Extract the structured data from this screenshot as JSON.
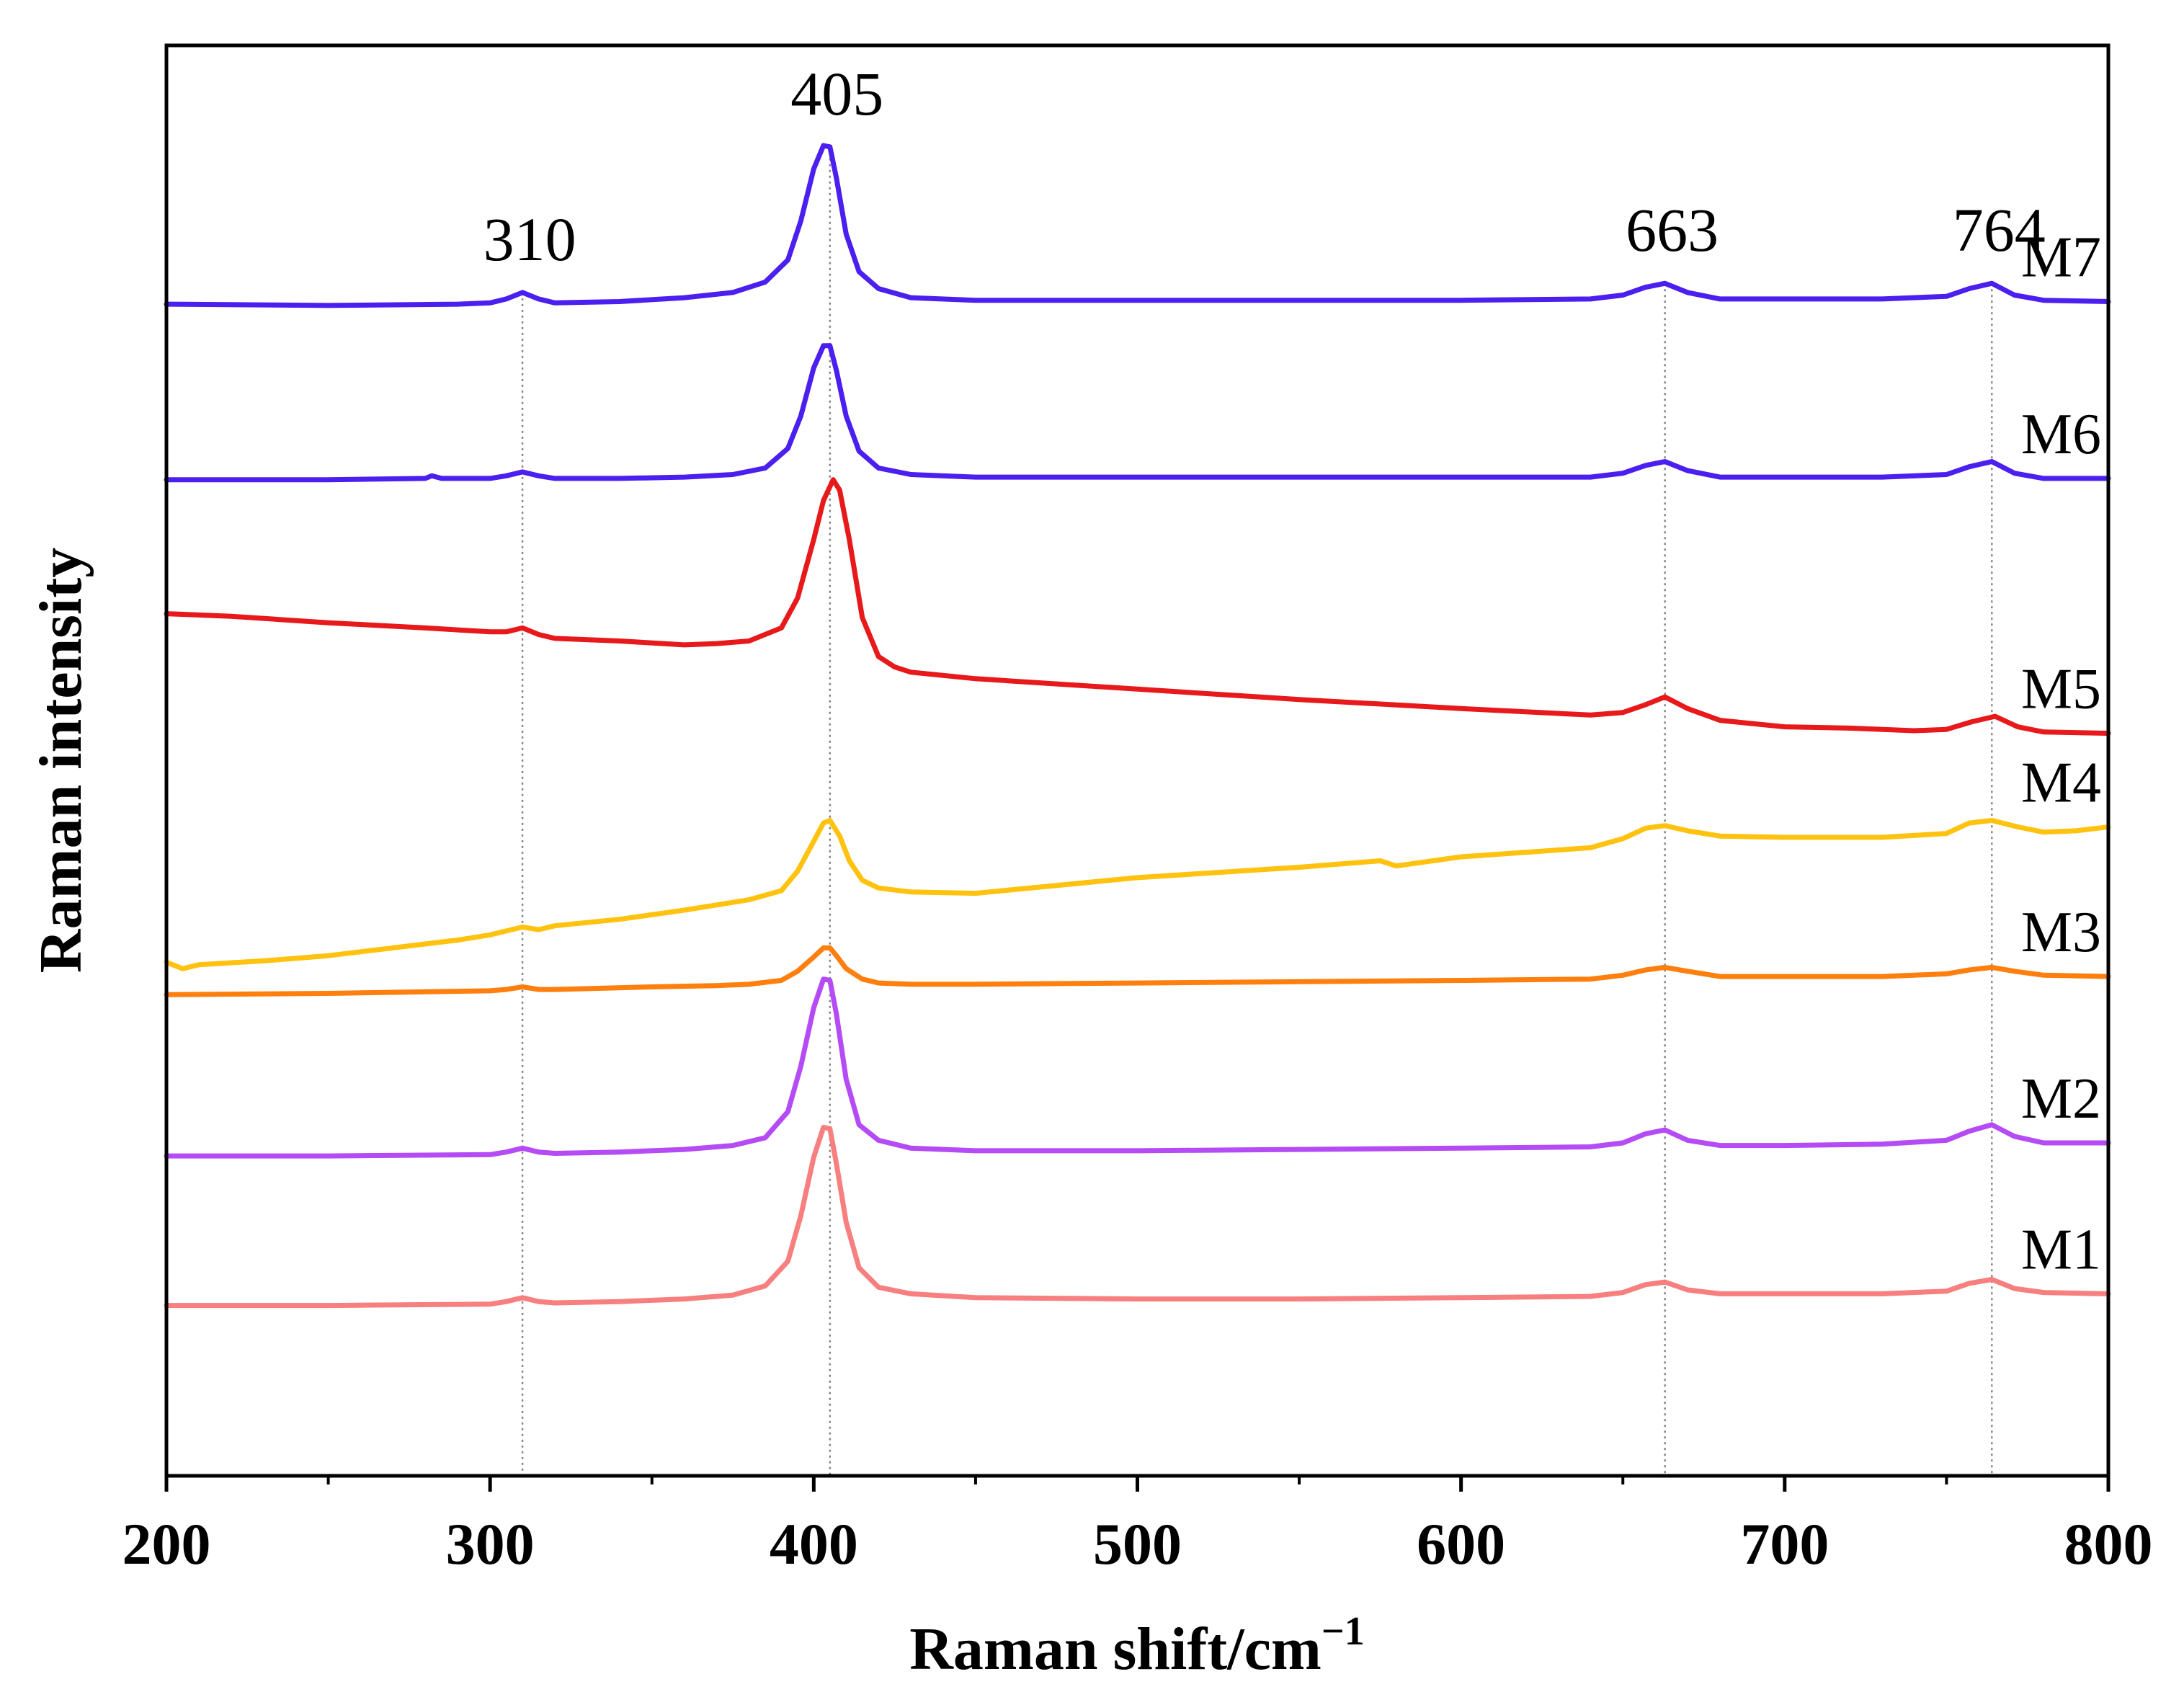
{
  "chart_data": {
    "type": "line",
    "title": "",
    "xlabel": "Raman shift/cm",
    "xlabel_sup": "−1",
    "ylabel": "Raman intensity",
    "xlim": [
      200,
      800
    ],
    "ylim": [
      0,
      110
    ],
    "xticks": [
      200,
      300,
      400,
      500,
      600,
      700,
      800
    ],
    "xtick_labels": [
      "200",
      "300",
      "400",
      "500",
      "600",
      "700",
      "800"
    ],
    "yticks_shown": false,
    "peak_markers": [
      {
        "x": 310,
        "label": "310"
      },
      {
        "x": 405,
        "label": "405"
      },
      {
        "x": 663,
        "label": "663"
      },
      {
        "x": 764,
        "label": "764"
      }
    ],
    "series": [
      {
        "name": "M7",
        "color": "#4B1FF0",
        "x": [
          200,
          250,
          290,
          300,
          305,
          310,
          315,
          320,
          340,
          360,
          375,
          385,
          392,
          396,
          400,
          403,
          405,
          407,
          410,
          414,
          420,
          430,
          450,
          500,
          550,
          600,
          640,
          650,
          657,
          663,
          670,
          680,
          700,
          730,
          750,
          757,
          764,
          771,
          780,
          800
        ],
        "y": [
          90.1,
          90.0,
          90.1,
          90.2,
          90.5,
          91.0,
          90.5,
          90.2,
          90.3,
          90.6,
          91.0,
          91.8,
          93.5,
          96.5,
          100.5,
          102.3,
          102.2,
          99.8,
          95.5,
          92.6,
          91.3,
          90.6,
          90.4,
          90.4,
          90.4,
          90.4,
          90.5,
          90.8,
          91.4,
          91.7,
          91.0,
          90.5,
          90.5,
          90.5,
          90.7,
          91.3,
          91.7,
          90.8,
          90.4,
          90.3
        ]
      },
      {
        "name": "M6",
        "color": "#4B1FF0",
        "x": [
          200,
          250,
          280,
          282,
          285,
          300,
          305,
          310,
          315,
          320,
          340,
          360,
          375,
          385,
          392,
          396,
          400,
          403,
          405,
          407,
          410,
          414,
          420,
          430,
          450,
          500,
          550,
          600,
          640,
          650,
          657,
          663,
          670,
          680,
          700,
          730,
          750,
          757,
          764,
          771,
          780,
          800
        ],
        "y": [
          76.6,
          76.6,
          76.7,
          76.9,
          76.7,
          76.7,
          76.9,
          77.2,
          76.9,
          76.7,
          76.7,
          76.8,
          77.0,
          77.5,
          79.0,
          81.5,
          85.2,
          86.9,
          86.9,
          85.0,
          81.5,
          78.8,
          77.5,
          77.0,
          76.8,
          76.8,
          76.8,
          76.8,
          76.8,
          77.1,
          77.7,
          78.0,
          77.3,
          76.8,
          76.8,
          76.8,
          77.0,
          77.6,
          78.0,
          77.1,
          76.7,
          76.7
        ]
      },
      {
        "name": "M5",
        "color": "#E8191B",
        "x": [
          200,
          220,
          250,
          280,
          300,
          305,
          310,
          315,
          320,
          340,
          360,
          370,
          380,
          390,
          395,
          400,
          403,
          406,
          408,
          411,
          415,
          420,
          425,
          430,
          450,
          500,
          550,
          600,
          640,
          650,
          657,
          663,
          670,
          680,
          700,
          720,
          740,
          750,
          758,
          765,
          772,
          780,
          800
        ],
        "y": [
          66.3,
          66.1,
          65.6,
          65.2,
          64.9,
          64.9,
          65.2,
          64.7,
          64.4,
          64.2,
          63.9,
          64.0,
          64.2,
          65.2,
          67.5,
          72.0,
          75.0,
          76.6,
          75.8,
          72.0,
          66.0,
          63.0,
          62.2,
          61.8,
          61.3,
          60.5,
          59.7,
          59.0,
          58.5,
          58.7,
          59.3,
          59.9,
          59.0,
          58.1,
          57.6,
          57.5,
          57.3,
          57.4,
          58.0,
          58.4,
          57.6,
          57.2,
          57.1
        ]
      },
      {
        "name": "M4",
        "color": "#FFC20E",
        "x": [
          200,
          205,
          210,
          230,
          250,
          270,
          290,
          300,
          305,
          310,
          315,
          320,
          340,
          360,
          370,
          380,
          390,
          395,
          400,
          403,
          405,
          408,
          411,
          415,
          420,
          430,
          450,
          500,
          550,
          575,
          580,
          600,
          640,
          650,
          657,
          663,
          670,
          680,
          700,
          730,
          750,
          757,
          764,
          772,
          780,
          790,
          800
        ],
        "y": [
          39.5,
          39.0,
          39.3,
          39.6,
          40.0,
          40.6,
          41.2,
          41.6,
          41.9,
          42.2,
          42.0,
          42.3,
          42.8,
          43.5,
          43.9,
          44.3,
          45.0,
          46.5,
          48.8,
          50.2,
          50.4,
          49.2,
          47.3,
          45.8,
          45.2,
          44.9,
          44.8,
          46.0,
          46.8,
          47.3,
          46.9,
          47.6,
          48.3,
          49.0,
          49.8,
          50.0,
          49.6,
          49.2,
          49.1,
          49.1,
          49.4,
          50.2,
          50.4,
          49.9,
          49.5,
          49.6,
          49.9
        ]
      },
      {
        "name": "M3",
        "color": "#FF7F0E",
        "x": [
          200,
          250,
          300,
          305,
          310,
          315,
          320,
          350,
          370,
          380,
          390,
          395,
          400,
          403,
          405,
          407,
          410,
          415,
          420,
          430,
          450,
          500,
          550,
          600,
          640,
          650,
          657,
          663,
          670,
          680,
          700,
          730,
          750,
          757,
          764,
          771,
          780,
          800
        ],
        "y": [
          37.0,
          37.1,
          37.3,
          37.4,
          37.6,
          37.4,
          37.4,
          37.6,
          37.7,
          37.8,
          38.1,
          38.8,
          39.9,
          40.6,
          40.6,
          40.0,
          39.0,
          38.2,
          37.9,
          37.8,
          37.8,
          37.9,
          38.0,
          38.1,
          38.2,
          38.5,
          38.9,
          39.1,
          38.8,
          38.4,
          38.4,
          38.4,
          38.6,
          38.9,
          39.1,
          38.8,
          38.5,
          38.4
        ]
      },
      {
        "name": "M2",
        "color": "#B44BF5",
        "x": [
          200,
          250,
          300,
          305,
          310,
          315,
          320,
          340,
          360,
          375,
          385,
          392,
          396,
          400,
          403,
          405,
          407,
          410,
          414,
          420,
          430,
          450,
          500,
          550,
          600,
          640,
          650,
          657,
          663,
          670,
          680,
          700,
          730,
          750,
          757,
          764,
          771,
          780,
          800
        ],
        "y": [
          24.6,
          24.6,
          24.7,
          24.9,
          25.2,
          24.9,
          24.8,
          24.9,
          25.1,
          25.4,
          26.0,
          28.0,
          31.5,
          36.0,
          38.2,
          38.1,
          35.5,
          30.5,
          27.0,
          25.8,
          25.2,
          25.0,
          25.0,
          25.1,
          25.2,
          25.3,
          25.6,
          26.3,
          26.6,
          25.8,
          25.4,
          25.4,
          25.5,
          25.8,
          26.5,
          27.0,
          26.1,
          25.6,
          25.6
        ]
      },
      {
        "name": "M1",
        "color": "#F77F7F",
        "x": [
          200,
          250,
          300,
          305,
          310,
          315,
          320,
          340,
          360,
          375,
          385,
          392,
          396,
          400,
          403,
          405,
          407,
          410,
          414,
          420,
          430,
          450,
          500,
          550,
          600,
          640,
          650,
          657,
          663,
          670,
          680,
          700,
          730,
          750,
          757,
          764,
          771,
          780,
          800
        ],
        "y": [
          13.1,
          13.1,
          13.2,
          13.4,
          13.7,
          13.4,
          13.3,
          13.4,
          13.6,
          13.9,
          14.6,
          16.5,
          20.0,
          24.5,
          26.8,
          26.7,
          24.0,
          19.5,
          16.0,
          14.5,
          14.0,
          13.7,
          13.6,
          13.6,
          13.7,
          13.8,
          14.1,
          14.7,
          14.9,
          14.3,
          14.0,
          14.0,
          14.0,
          14.2,
          14.8,
          15.1,
          14.4,
          14.1,
          14.0
        ]
      }
    ]
  }
}
